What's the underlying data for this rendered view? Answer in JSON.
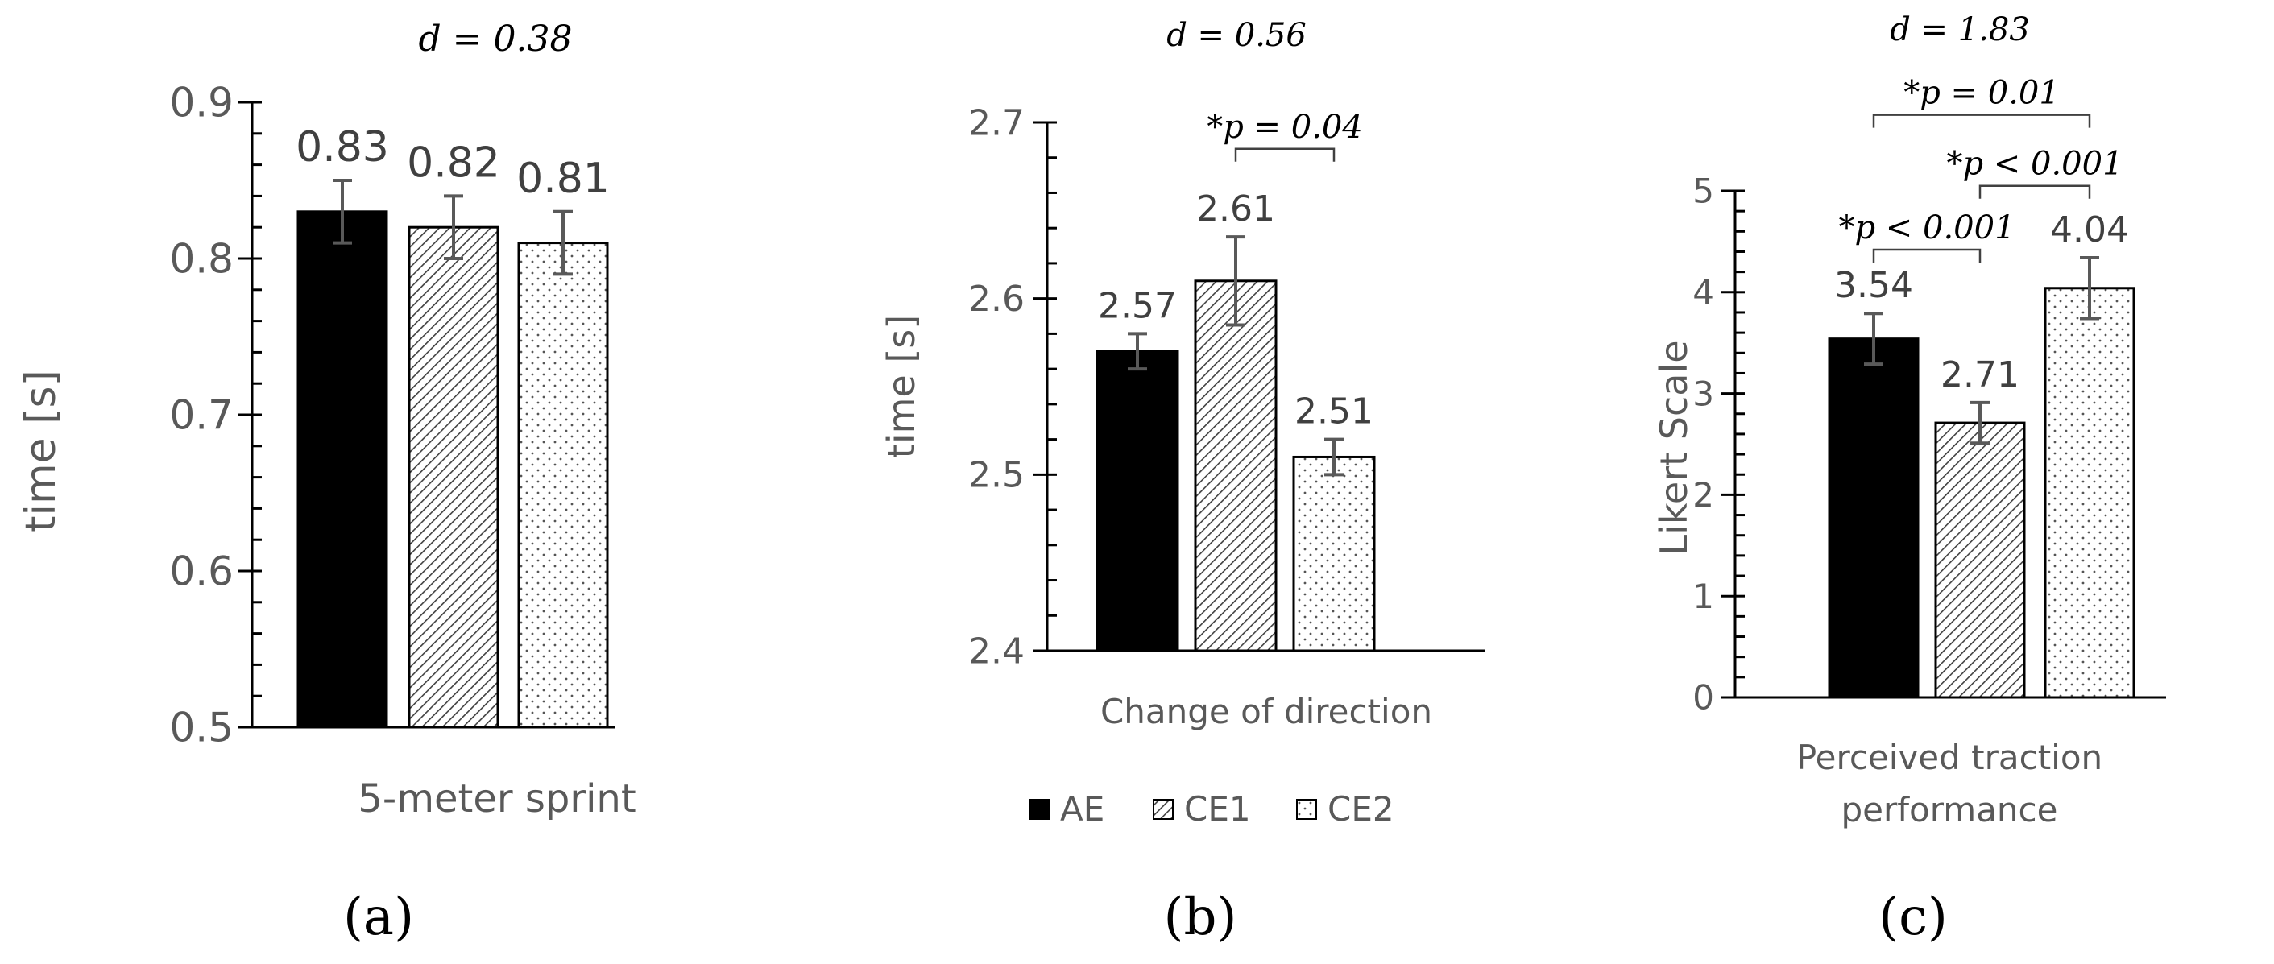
{
  "colors": {
    "axis": "#000000",
    "text": "#595959",
    "bar_solid": "#000000",
    "error_bar": "#595959"
  },
  "legend": {
    "items": [
      {
        "name": "AE",
        "fill": "solid"
      },
      {
        "name": "CE1",
        "fill": "hatch"
      },
      {
        "name": "CE2",
        "fill": "dots"
      }
    ]
  },
  "chart_data": [
    {
      "type": "bar",
      "panel": "(a)",
      "title": "d = 0.38",
      "xlabel": "5-meter sprint",
      "ylabel": "time [s]",
      "ylim": [
        0.5,
        0.9
      ],
      "yticks": [
        "0.5",
        "0.6",
        "0.7",
        "0.8",
        "0.9"
      ],
      "yminor": 0.02,
      "series": [
        {
          "name": "AE",
          "value": 0.83,
          "label": "0.83",
          "error": 0.02
        },
        {
          "name": "CE1",
          "value": 0.82,
          "label": "0.82",
          "error": 0.02
        },
        {
          "name": "CE2",
          "value": 0.81,
          "label": "0.81",
          "error": 0.02
        }
      ],
      "annotations": []
    },
    {
      "type": "bar",
      "panel": "(b)",
      "title": "d = 0.56",
      "xlabel": "Change of direction",
      "ylabel": "time [s]",
      "ylim": [
        2.4,
        2.7
      ],
      "yticks": [
        "2.4",
        "2.5",
        "2.6",
        "2.7"
      ],
      "yminor": 0.02,
      "series": [
        {
          "name": "AE",
          "value": 2.57,
          "label": "2.57",
          "error": 0.01
        },
        {
          "name": "CE1",
          "value": 2.61,
          "label": "2.61",
          "error": 0.025
        },
        {
          "name": "CE2",
          "value": 2.51,
          "label": "2.51",
          "error": 0.01
        }
      ],
      "annotations": [
        {
          "text": "*p = 0.04",
          "from": 1,
          "to": 2,
          "level": 2.685
        }
      ]
    },
    {
      "type": "bar",
      "panel": "(c)",
      "title": "d = 1.83",
      "xlabel": "Perceived traction performance",
      "ylabel": "Likert Scale",
      "ylim": [
        0,
        5
      ],
      "yticks": [
        "0",
        "1",
        "2",
        "3",
        "4",
        "5"
      ],
      "yminor": 0.2,
      "series": [
        {
          "name": "AE",
          "value": 3.54,
          "label": "3.54",
          "error": 0.25
        },
        {
          "name": "CE1",
          "value": 2.71,
          "label": "2.71",
          "error": 0.2
        },
        {
          "name": "CE2",
          "value": 4.04,
          "label": "4.04",
          "error": 0.3
        }
      ],
      "annotations": [
        {
          "text": "*p < 0.001",
          "from": 0,
          "to": 1,
          "level": 4.42
        },
        {
          "text": "*p < 0.001",
          "from": 1,
          "to": 2,
          "level": 5.05
        },
        {
          "text": "*p = 0.01",
          "from": 0,
          "to": 2,
          "level": 5.75
        }
      ]
    }
  ]
}
